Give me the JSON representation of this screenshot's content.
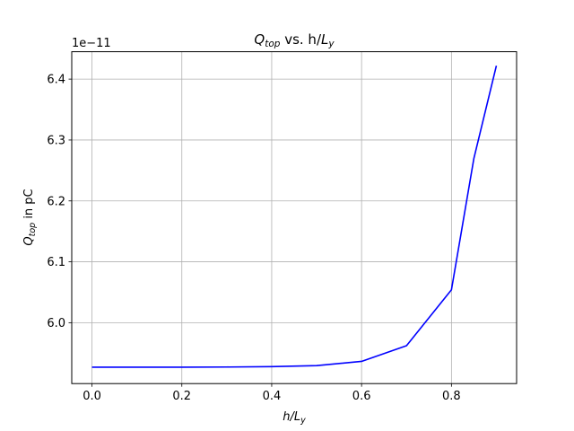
{
  "chart_data": {
    "type": "line",
    "title": {
      "main": "Q",
      "main_sub": "top",
      "middle": " vs. h/",
      "end": "L",
      "end_sub": "y"
    },
    "xlabel": {
      "main": "h/L",
      "sub": "y"
    },
    "ylabel": {
      "main": "Q",
      "sub": "top",
      "rest": " in pC"
    },
    "offset_text": "1e−11",
    "xlim": [
      -0.045,
      0.945
    ],
    "ylim": [
      5.9,
      6.445
    ],
    "xticks": [
      0.0,
      0.2,
      0.4,
      0.6,
      0.8
    ],
    "xtick_labels": [
      "0.0",
      "0.2",
      "0.4",
      "0.6",
      "0.8"
    ],
    "yticks": [
      6.0,
      6.1,
      6.2,
      6.3,
      6.4
    ],
    "ytick_labels": [
      "6.0",
      "6.1",
      "6.2",
      "6.3",
      "6.4"
    ],
    "grid": true,
    "series": [
      {
        "color": "#0000ff",
        "x": [
          0.0,
          0.1,
          0.2,
          0.3,
          0.4,
          0.5,
          0.6,
          0.7,
          0.8,
          0.85,
          0.9
        ],
        "y": [
          5.927,
          5.927,
          5.927,
          5.9272,
          5.9278,
          5.9295,
          5.9365,
          5.9622,
          6.054,
          6.27,
          6.422
        ]
      }
    ]
  }
}
